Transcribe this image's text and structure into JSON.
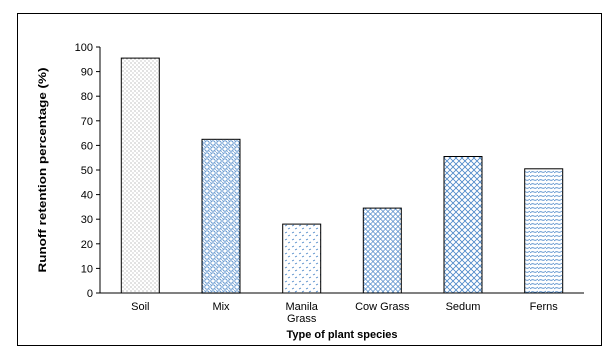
{
  "chart_data": {
    "type": "bar",
    "title": "",
    "xlabel": "Type of plant species",
    "ylabel": "Runoff retention percentage (%)",
    "ylim": [
      0,
      100
    ],
    "ytick_step": 10,
    "grid": false,
    "categories": [
      [
        "Soil"
      ],
      [
        "Mix"
      ],
      [
        "Manila",
        "Grass"
      ],
      [
        "Cow Grass"
      ],
      [
        "Sedum"
      ],
      [
        "Ferns"
      ]
    ],
    "values": [
      95.5,
      62.5,
      28,
      34.5,
      55.5,
      50.5
    ],
    "patterns": [
      "dots-dense",
      "circles-grid",
      "dashes-light",
      "diamonds-fine",
      "crosshatch",
      "wave-lines"
    ],
    "colors": {
      "soil_pattern": "#707070",
      "blue_pattern": "#4a86c8",
      "bar_edge": "#000000",
      "axis": "#000000"
    }
  }
}
